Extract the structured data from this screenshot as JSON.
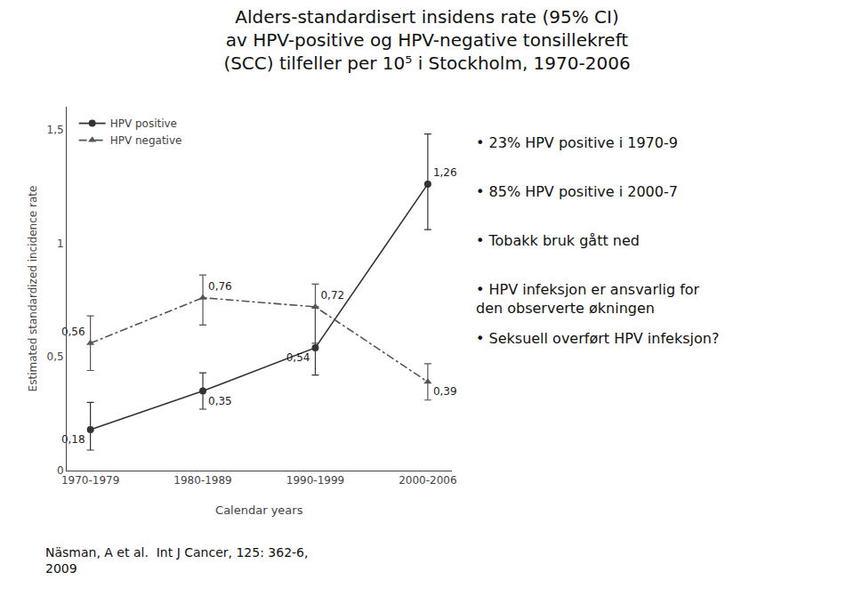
{
  "chart_data": {
    "type": "line",
    "title": "Alders-standardisert insidens rate (95% CI)\nav HPV-positive og HPV-negative tonsillekreft\n(SCC) tilfeller per 10⁵ i Stockholm, 1970-2006",
    "xlabel": "Calendar years",
    "ylabel": "Estimated standardized incidence rate",
    "categories": [
      "1970-1979",
      "1980-1989",
      "1990-1999",
      "2000-2006"
    ],
    "series": [
      {
        "name": "HPV positive",
        "color": "#333333",
        "marker": "circle",
        "line_style": "solid",
        "values": [
          0.18,
          0.35,
          0.54,
          1.26
        ],
        "value_labels": [
          "0,18",
          "0,35",
          "0,54",
          "1,26"
        ],
        "yerr_low": [
          0.09,
          0.08,
          0.12,
          0.2
        ],
        "yerr_high": [
          0.12,
          0.08,
          0.18,
          0.22
        ]
      },
      {
        "name": "HPV negative",
        "color": "#555555",
        "marker": "triangle-up",
        "line_style": "dashdot",
        "values": [
          0.56,
          0.76,
          0.72,
          0.39
        ],
        "value_labels": [
          "0,56",
          "0,76",
          "0,72",
          "0,39"
        ],
        "yerr_low": [
          0.12,
          0.12,
          0.16,
          0.08
        ],
        "yerr_high": [
          0.12,
          0.1,
          0.1,
          0.08
        ]
      }
    ],
    "ylim": [
      0,
      1.6
    ],
    "yticks": [
      0,
      {
        "value": 0.5,
        "label": "0,5"
      },
      1,
      {
        "value": 1.5,
        "label": "1,5"
      }
    ],
    "data_labels": true,
    "grid": false,
    "legend": "upper left",
    "annotations": [
      "• 23% HPV positive i 1970-9",
      "• 85% HPV positive i 2000-7",
      "• Tobakk bruk gått ned",
      "• HPV infeksjon er ansvarlig for\nden observerte økningen",
      "• Seksuell overført HPV infeksjon?",
      "Näsman, A et al.  Int J Cancer, 125: 362-6,\n2009"
    ]
  }
}
